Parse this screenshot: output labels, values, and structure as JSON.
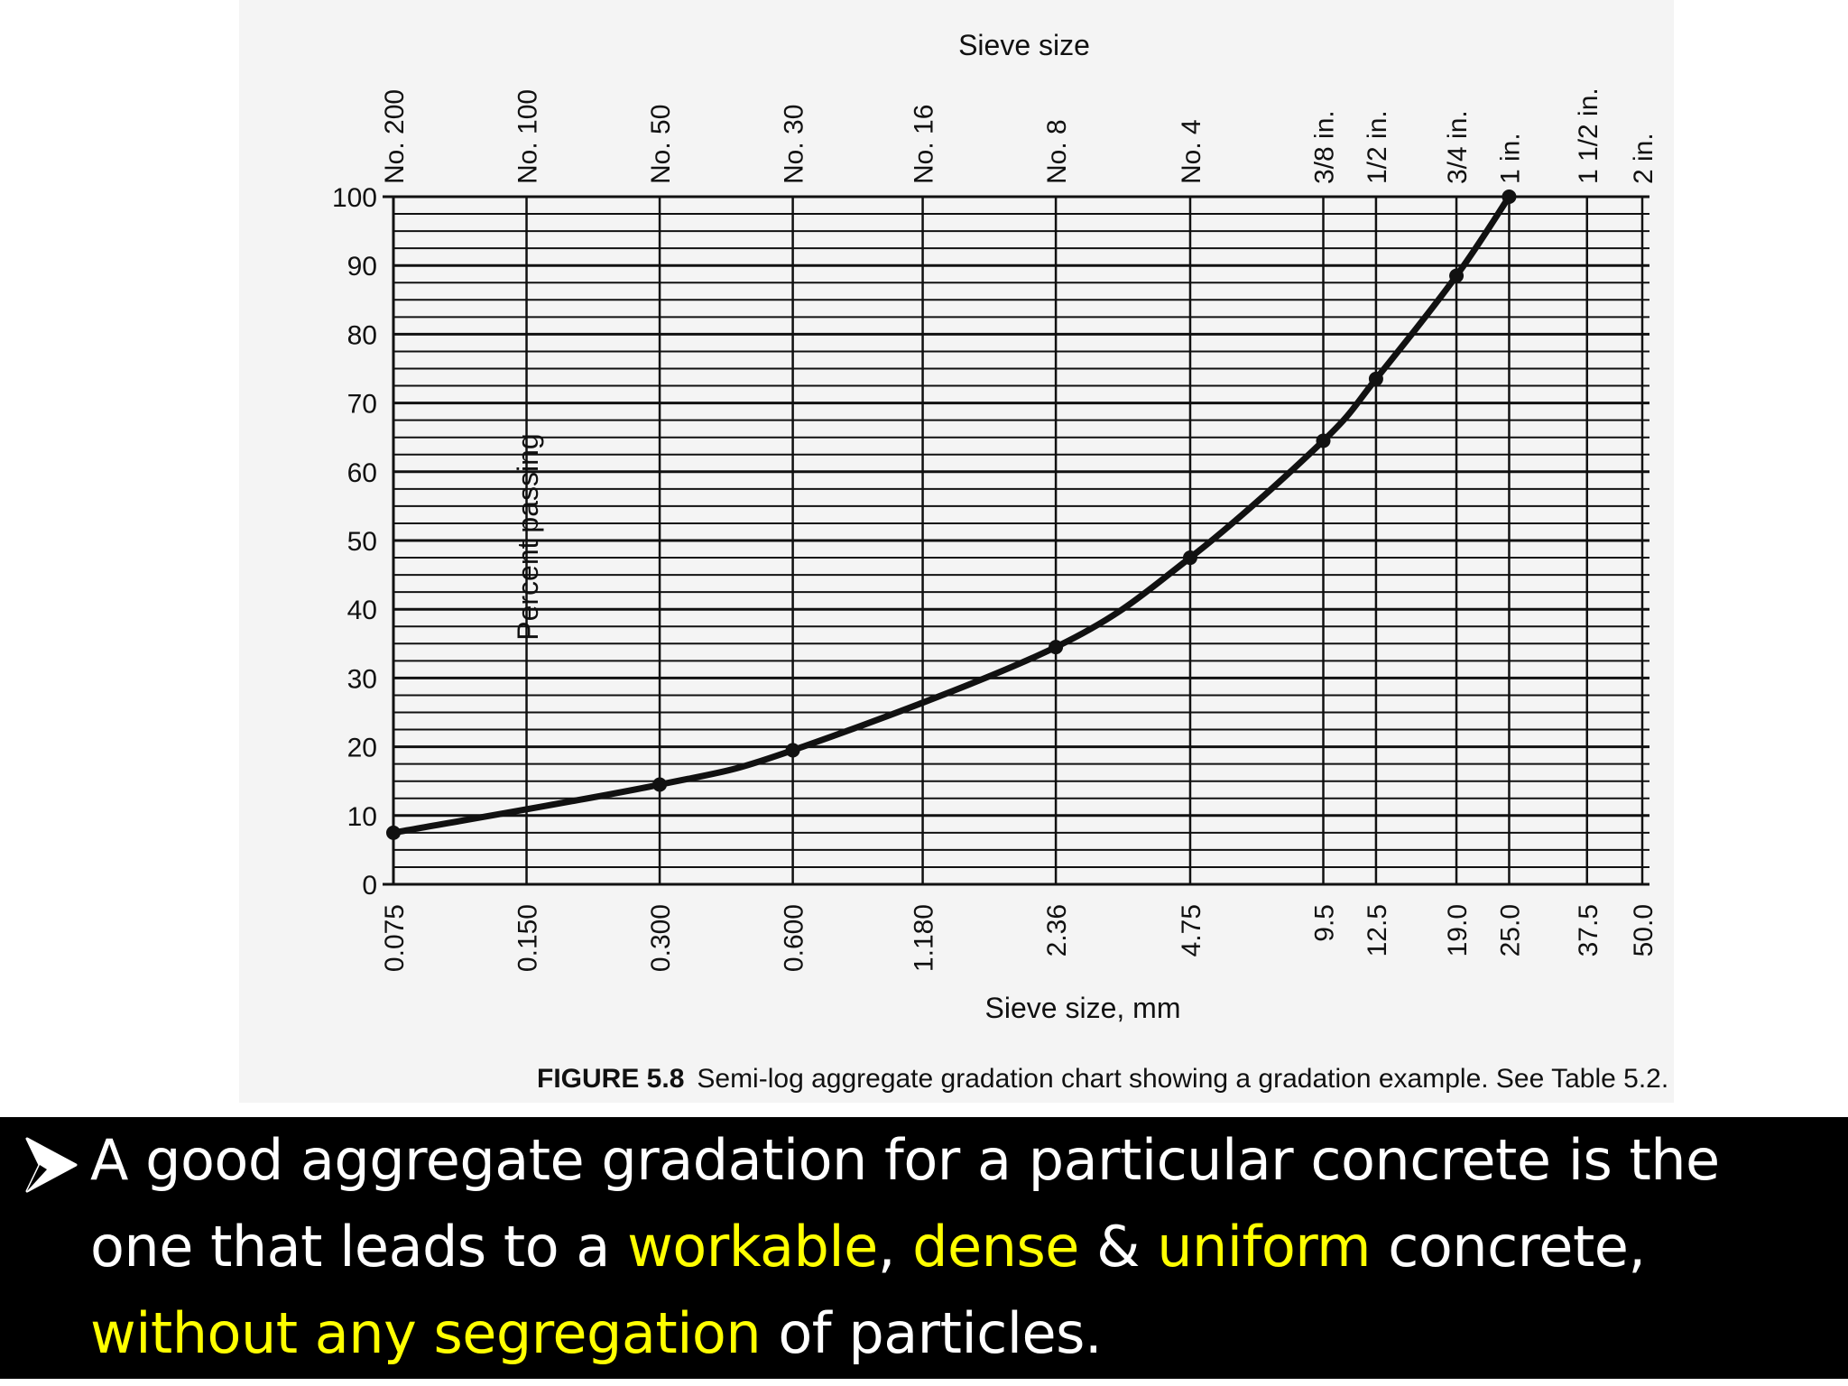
{
  "colors": {
    "highlight": "#ffff00",
    "text": "#ffffff",
    "background": "#000000",
    "chart_ink": "#111111",
    "chart_paper": "#f4f4f4"
  },
  "chart_data": {
    "type": "line",
    "x_scale": "log",
    "top_axis_title": "Sieve size",
    "top_tick_labels": [
      "No. 200",
      "No. 100",
      "No. 50",
      "No. 30",
      "No. 16",
      "No. 8",
      "No. 4",
      "3/8 in.",
      "1/2 in.",
      "3/4 in.",
      "1 in.",
      "1 1/2 in.",
      "2 in."
    ],
    "xlabel": "Sieve size, mm",
    "ylabel": "Percent passing",
    "x_ticks": [
      0.075,
      0.15,
      0.3,
      0.6,
      1.18,
      2.36,
      4.75,
      9.5,
      12.5,
      19.0,
      25.0,
      37.5,
      50.0
    ],
    "x_tick_labels": [
      "0.075",
      "0.150",
      "0.300",
      "0.600",
      "1.180",
      "2.36",
      "4.75",
      "9.5",
      "12.5",
      "19.0",
      "25.0",
      "37.5",
      "50.0"
    ],
    "y_ticks": [
      0,
      10,
      20,
      30,
      40,
      50,
      60,
      70,
      80,
      90,
      100
    ],
    "ylim": [
      0,
      100
    ],
    "y_minor_step": 2.5,
    "grid": true,
    "series": [
      {
        "x": [
          0.075,
          0.3,
          0.6,
          2.36,
          4.75,
          9.5,
          12.5,
          19.0,
          25.0
        ],
        "y": [
          7.5,
          14.5,
          19.5,
          34.5,
          47.5,
          64.5,
          73.5,
          88.5,
          100
        ]
      }
    ],
    "caption": {
      "label": "FIGURE 5.8",
      "text": "Semi-log aggregate gradation chart showing a gradation example. See Table 5.2."
    }
  },
  "bullet": {
    "icon": "arrowhead-bullet-icon",
    "part1": "A good aggregate gradation for a particular concrete is the one that leads to a ",
    "hl1": "workable",
    "part2": ", ",
    "hl2": "dense",
    "part3": " & ",
    "hl3": "uniform",
    "part4": " concrete, ",
    "hl4": "without any segregation",
    "part5": " of particles."
  }
}
